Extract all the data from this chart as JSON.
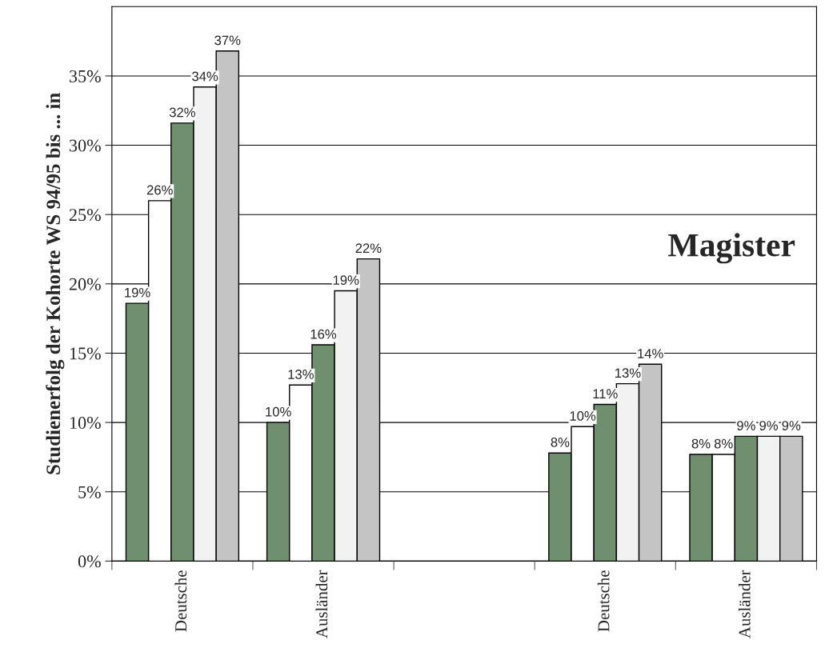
{
  "chart_data": {
    "type": "bar",
    "ylabel": "Studienerfolg der Kohorte WS 94/95 bis ... in",
    "categories": [
      "Deutsche",
      "Ausländer",
      null,
      "Deutsche",
      "Ausländer"
    ],
    "series": [
      {
        "color": "#6f8f6f",
        "values": [
          18.6,
          10.0,
          null,
          7.8,
          7.7
        ],
        "value_labels": [
          "19%",
          "10%",
          null,
          "8%",
          "8%"
        ]
      },
      {
        "color": "#ffffff",
        "values": [
          26.0,
          12.7,
          null,
          9.7,
          7.7
        ],
        "value_labels": [
          "26%",
          "13%",
          null,
          "10%",
          "8%"
        ]
      },
      {
        "color": "#6f8f6f",
        "values": [
          31.6,
          15.6,
          null,
          11.3,
          9.0
        ],
        "value_labels": [
          "32%",
          "16%",
          null,
          "11%",
          "9%"
        ]
      },
      {
        "color": "#f2f2f2",
        "values": [
          34.2,
          19.5,
          null,
          12.8,
          9.0
        ],
        "value_labels": [
          "34%",
          "19%",
          null,
          "13%",
          "9%"
        ]
      },
      {
        "color": "#c4c4c4",
        "values": [
          36.8,
          21.8,
          null,
          14.2,
          9.0
        ],
        "value_labels": [
          "37%",
          "22%",
          null,
          "14%",
          "9%"
        ]
      }
    ],
    "ylim": [
      0,
      40
    ],
    "yticks": [
      {
        "value": 0,
        "label": "0%"
      },
      {
        "value": 5,
        "label": "5%"
      },
      {
        "value": 10,
        "label": "10%"
      },
      {
        "value": 15,
        "label": "15%"
      },
      {
        "value": 20,
        "label": "20%"
      },
      {
        "value": 25,
        "label": "25%"
      },
      {
        "value": 30,
        "label": "30%"
      },
      {
        "value": 35,
        "label": "35%"
      }
    ],
    "grid": "y",
    "legend": false,
    "annotations": [
      "Magister"
    ]
  }
}
